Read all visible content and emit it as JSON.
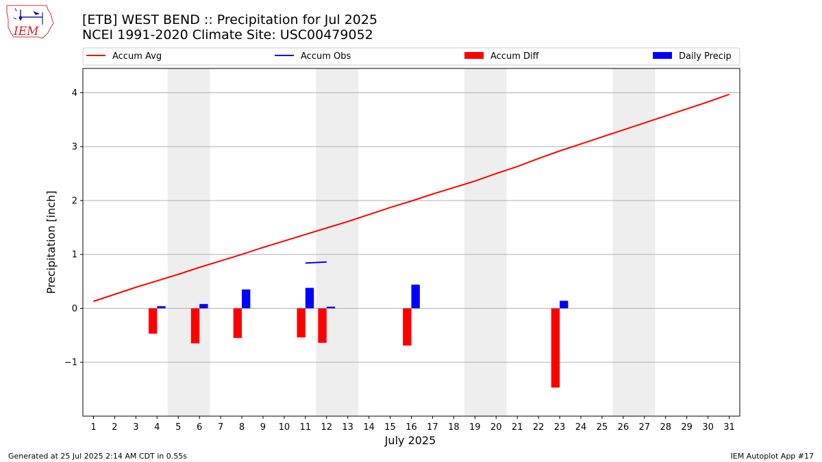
{
  "logo": {
    "text": "IEM",
    "name": "iem-logo"
  },
  "header": {
    "title_line1": "[ETB] WEST BEND :: Precipitation for Jul 2025",
    "title_line2": "NCEI 1991-2020 Climate Site: USC00479052"
  },
  "footer": {
    "left": "Generated at 25 Jul 2025 2:14 AM CDT in 0.55s",
    "right": "IEM Autoplot App #17"
  },
  "colors": {
    "accum_avg": "#ff0000",
    "accum_obs": "#0000ff",
    "accum_diff": "#ff0000",
    "daily_precip": "#0000ff",
    "weekend_shade": "#eeeeee",
    "grid": "#b0b0b0"
  },
  "chart_data": {
    "type": "bar",
    "xlabel": "July 2025",
    "ylabel": "Precipitation [inch]",
    "xlim": [
      0.5,
      31.5
    ],
    "ylim": [
      -2.0,
      4.45
    ],
    "yticks": [
      -1,
      0,
      1,
      2,
      3,
      4
    ],
    "ytick_labels": [
      "−1",
      "0",
      "1",
      "2",
      "3",
      "4"
    ],
    "days": [
      1,
      2,
      3,
      4,
      5,
      6,
      7,
      8,
      9,
      10,
      11,
      12,
      13,
      14,
      15,
      16,
      17,
      18,
      19,
      20,
      21,
      22,
      23,
      24,
      25,
      26,
      27,
      28,
      29,
      30,
      31
    ],
    "grid": "horizontal",
    "legend_placement": "top, above plot",
    "legend": [
      {
        "label": "Accum Avg",
        "kind": "line",
        "color_key": "accum_avg"
      },
      {
        "label": "Accum Obs",
        "kind": "line",
        "color_key": "accum_obs"
      },
      {
        "label": "Accum Diff",
        "kind": "bar",
        "color_key": "accum_diff"
      },
      {
        "label": "Daily Precip",
        "kind": "bar",
        "color_key": "daily_precip"
      }
    ],
    "weekend_shading": [
      [
        4.5,
        6.5
      ],
      [
        11.5,
        13.5
      ],
      [
        18.5,
        20.5
      ],
      [
        25.5,
        27.5
      ]
    ],
    "series": [
      {
        "name": "Accum Avg",
        "type": "line",
        "x": [
          1,
          2,
          3,
          4,
          5,
          6,
          7,
          8,
          9,
          10,
          11,
          12,
          13,
          14,
          15,
          16,
          17,
          18,
          19,
          20,
          21,
          22,
          23,
          24,
          25,
          26,
          27,
          28,
          29,
          30,
          31
        ],
        "values": [
          0.13,
          0.26,
          0.39,
          0.51,
          0.63,
          0.76,
          0.88,
          1.0,
          1.13,
          1.25,
          1.37,
          1.49,
          1.61,
          1.74,
          1.87,
          1.99,
          2.12,
          2.24,
          2.36,
          2.5,
          2.63,
          2.78,
          2.92,
          3.05,
          3.18,
          3.31,
          3.44,
          3.57,
          3.7,
          3.83,
          3.97
        ]
      },
      {
        "name": "Accum Obs",
        "type": "line",
        "x": [
          11,
          12
        ],
        "values": [
          0.84,
          0.86
        ]
      },
      {
        "name": "Accum Diff",
        "type": "bar",
        "x": [
          4,
          6,
          8,
          11,
          12,
          16,
          23
        ],
        "values": [
          -0.47,
          -0.65,
          -0.55,
          -0.54,
          -0.64,
          -0.69,
          -1.47
        ]
      },
      {
        "name": "Daily Precip",
        "type": "bar",
        "x": [
          4,
          6,
          8,
          11,
          12,
          16,
          23
        ],
        "values": [
          0.04,
          0.08,
          0.35,
          0.38,
          0.03,
          0.44,
          0.14
        ]
      }
    ]
  }
}
